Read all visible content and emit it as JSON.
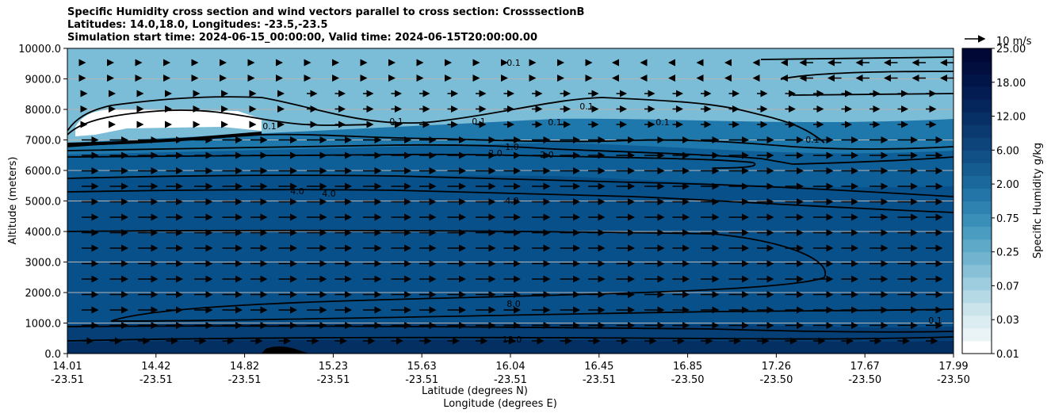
{
  "title": {
    "line1": "Specific Humidity cross section and wind vectors parallel to cross section: CrosssectionB",
    "line2": "Latitudes: 14.0,18.0, Longitudes: -23.5,-23.5",
    "line3": "Simulation start time: 2024-06-15_00:00:00, Valid time: 2024-06-15T20:00:00.00"
  },
  "chart_data": {
    "type": "heatmap",
    "title": "Specific Humidity cross section and wind vectors parallel to cross section: CrosssectionB",
    "ylabel": "Altitude (meters)",
    "xlabel_lat": "Latitude (degrees N)",
    "xlabel_lon": "Longitude (degrees E)",
    "ylim": [
      0,
      10000
    ],
    "yticks": [
      "0.0",
      "1000.0",
      "2000.0",
      "3000.0",
      "4000.0",
      "5000.0",
      "6000.0",
      "7000.0",
      "8000.0",
      "9000.0",
      "10000.0"
    ],
    "xticks_lat": [
      "14.01",
      "14.42",
      "14.82",
      "15.23",
      "15.63",
      "16.04",
      "16.45",
      "16.85",
      "17.26",
      "17.67",
      "17.99"
    ],
    "xticks_lon": [
      "-23.51",
      "-23.51",
      "-23.51",
      "-23.51",
      "-23.51",
      "-23.51",
      "-23.51",
      "-23.50",
      "-23.50",
      "-23.50",
      "-23.50"
    ],
    "grid": "horizontal",
    "colorbar": {
      "label": "Specific Humidity g/kg",
      "ticks": [
        "0.01",
        "0.03",
        "0.07",
        "0.25",
        "0.75",
        "2.00",
        "6.00",
        "12.00",
        "18.00",
        "25.00"
      ],
      "colors": [
        "#ffffff",
        "#eaf4f7",
        "#dcedf2",
        "#cbe4ec",
        "#b6d9e6",
        "#9fcde0",
        "#88c0d8",
        "#72b4d0",
        "#5ea8c8",
        "#4a9cc0",
        "#3a8fb8",
        "#2d82af",
        "#2275a6",
        "#1b689c",
        "#155c91",
        "#115086",
        "#0d457b",
        "#0a3a70",
        "#073066",
        "#05265c",
        "#031d52",
        "#021548",
        "#010e3e",
        "#010835"
      ]
    },
    "contour_labels": [
      "0.1",
      "0.1",
      "0.1",
      "0.1",
      "0.1",
      "0.1",
      "1.0",
      "2.0",
      "2.0",
      "4.0",
      "4.0",
      "4.0",
      "8.0",
      "12.0",
      "0.1",
      "0.1",
      "0.1"
    ],
    "wind_reference": "10 m/s"
  }
}
